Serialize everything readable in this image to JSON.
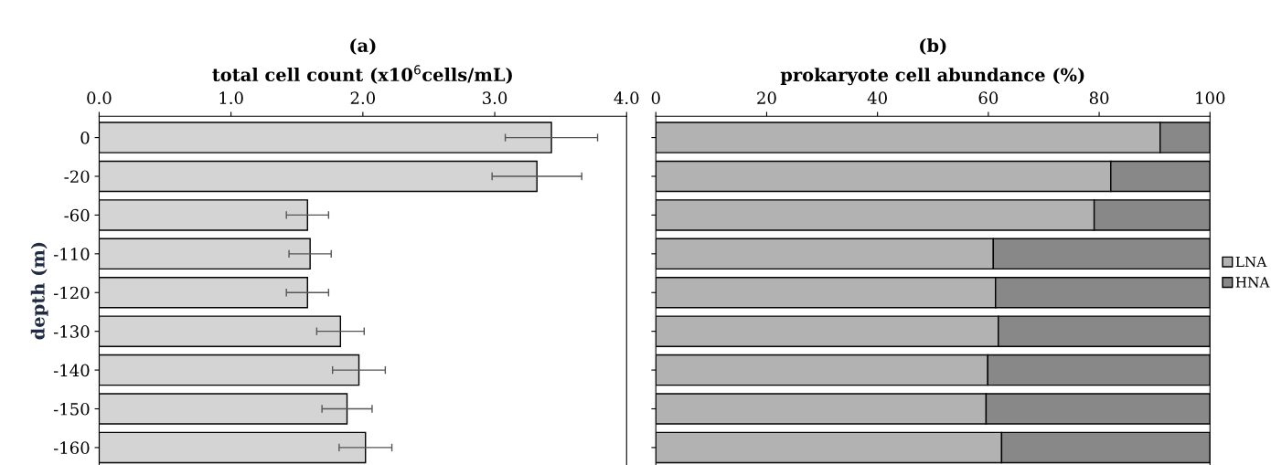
{
  "chart_data": [
    {
      "type": "bar",
      "orientation": "horizontal",
      "title": "(a)",
      "xlabel": "total cell count (x10$^{6}$cells/mL)",
      "ylabel": "depth (m)",
      "categories": [
        "0",
        "-20",
        "-60",
        "-110",
        "-120",
        "-130",
        "-140",
        "-150",
        "-160"
      ],
      "series": [
        {
          "color": "#d4d4d4",
          "values": [
            3.43,
            3.32,
            1.58,
            1.6,
            1.58,
            1.83,
            1.97,
            1.88,
            2.02
          ],
          "errors": [
            0.35,
            0.34,
            0.16,
            0.16,
            0.16,
            0.18,
            0.2,
            0.19,
            0.2
          ]
        }
      ],
      "xlim": [
        0,
        4.0
      ],
      "xticks": [
        {
          "value": 0,
          "label": "0.0"
        },
        {
          "value": 1,
          "label": "1.0"
        },
        {
          "value": 2,
          "label": "2.0"
        },
        {
          "value": 3,
          "label": "3.0"
        },
        {
          "value": 4,
          "label": "4.0"
        }
      ],
      "grid": false,
      "legend": false
    },
    {
      "type": "bar",
      "orientation": "horizontal",
      "stacked": true,
      "title": "(b)",
      "xlabel": "prokaryote cell abundance (%)",
      "categories": [
        "0",
        "-20",
        "-60",
        "-110",
        "-120",
        "-130",
        "-140",
        "-150",
        "-160"
      ],
      "series": [
        {
          "name": "LNA",
          "color": "#b2b2b2",
          "values": [
            91.0,
            82.1,
            79.1,
            60.9,
            61.3,
            61.8,
            59.9,
            59.6,
            62.4
          ]
        },
        {
          "name": "HNA",
          "color": "#888888",
          "values": [
            9.0,
            17.9,
            20.9,
            39.1,
            38.7,
            38.2,
            40.1,
            40.4,
            37.6
          ]
        }
      ],
      "xlim": [
        0,
        100
      ],
      "xticks": [
        0,
        20,
        40,
        60,
        80,
        100
      ],
      "tick_labels": "x",
      "grid": false,
      "legend": "right"
    }
  ]
}
